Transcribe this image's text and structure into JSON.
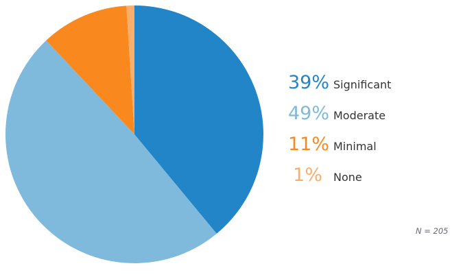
{
  "chart_data": {
    "type": "pie",
    "title": "",
    "start_angle_deg": -90,
    "direction": "clockwise",
    "legend_position": "right",
    "slices": [
      {
        "label": "Significant",
        "value": 39,
        "pct_label": "39%",
        "color": "#2285C8"
      },
      {
        "label": "Moderate",
        "value": 49,
        "pct_label": "49%",
        "color": "#7FBADC"
      },
      {
        "label": "Minimal",
        "value": 11,
        "pct_label": "11%",
        "color": "#F9891F"
      },
      {
        "label": "None",
        "value": 1,
        "pct_label": "1%",
        "color": "#FBAE6C"
      }
    ],
    "note": "N = 205"
  }
}
